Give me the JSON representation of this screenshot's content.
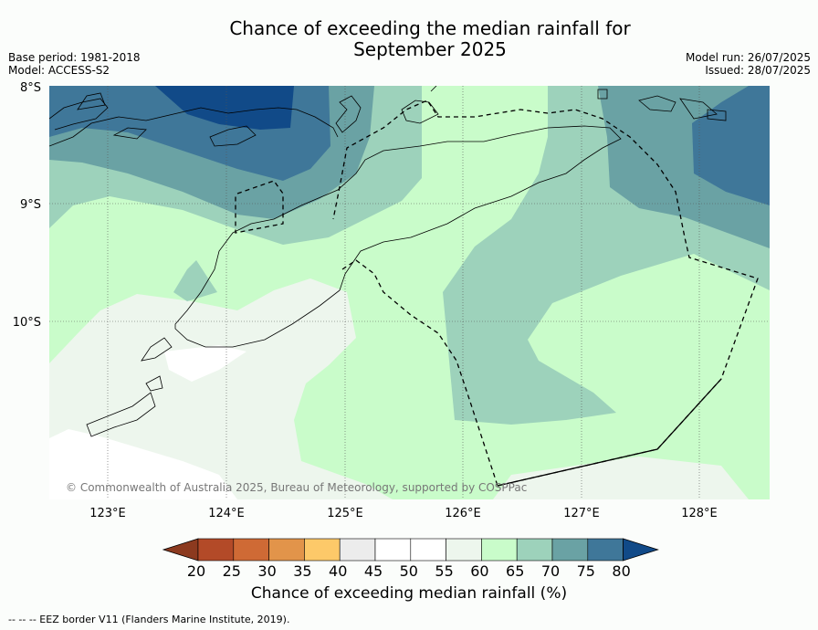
{
  "title_line1": "Chance of exceeding the median rainfall for",
  "title_line2": "September 2025",
  "base_period": "Base period: 1981-2018",
  "model": "Model: ACCESS-S2",
  "model_run": "Model run: 26/07/2025",
  "issued": "Issued: 28/07/2025",
  "lat_labels": [
    "8°S",
    "9°S",
    "10°S"
  ],
  "lon_labels": [
    "123°E",
    "124°E",
    "125°E",
    "126°E",
    "127°E",
    "128°E"
  ],
  "copyright": "© Commonwealth of Australia 2025, Bureau of Meteorology, supported by COSPPac",
  "colorbar": {
    "ticks": [
      "20",
      "25",
      "30",
      "35",
      "40",
      "45",
      "50",
      "55",
      "60",
      "65",
      "70",
      "75",
      "80"
    ],
    "colors": [
      "#8c3a1f",
      "#b34a28",
      "#cf6a35",
      "#e2944a",
      "#fdc969",
      "#ececec",
      "#ffffff",
      "#ffffff",
      "#edf6ed",
      "#c9fcca",
      "#9dd2bb",
      "#6aa2a4",
      "#3f7799",
      "#114a88"
    ],
    "label": "Chance of exceeding median rainfall (%)"
  },
  "eez_note": "--  --  -- EEZ border V11 (Flanders Marine Institute, 2019)."
}
